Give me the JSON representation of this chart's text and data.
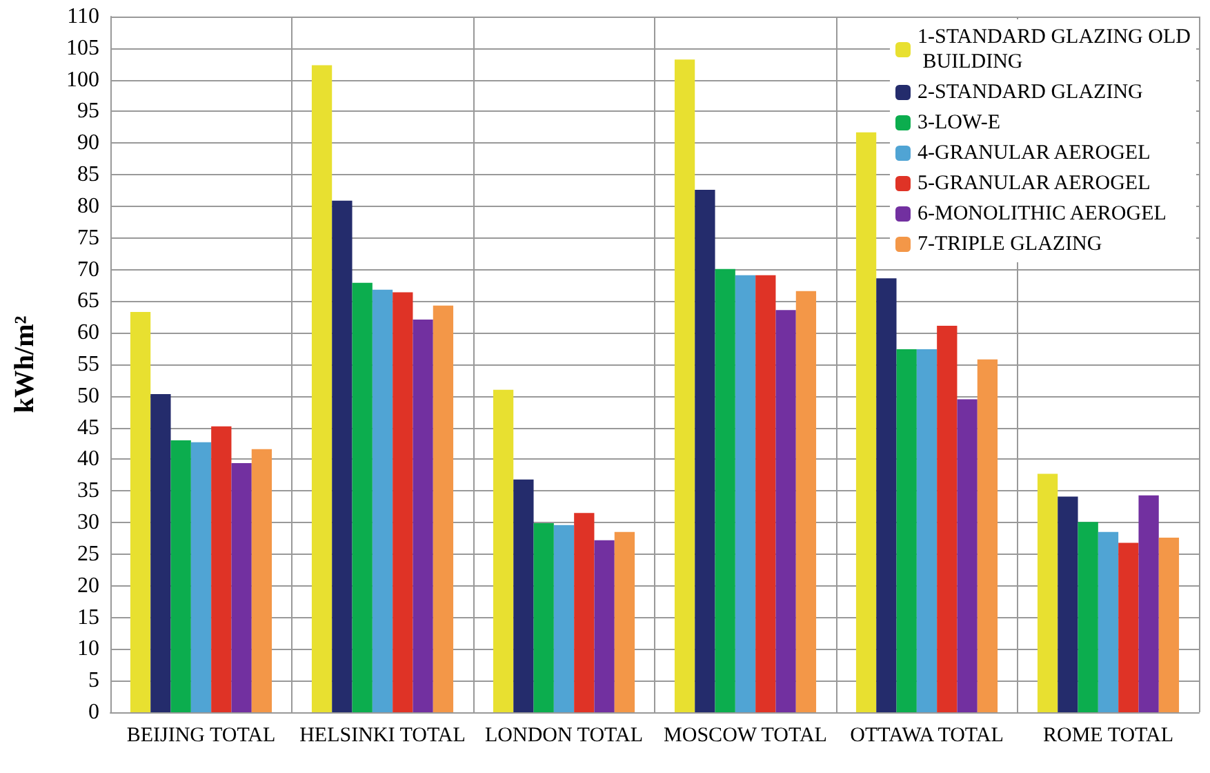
{
  "chart_data": {
    "type": "bar",
    "ylabel": "kWh/m²",
    "categories": [
      "BEIJING TOTAL",
      "HELSINKI TOTAL",
      "LONDON TOTAL",
      "MOSCOW TOTAL",
      "OTTAWA TOTAL",
      "ROME TOTAL"
    ],
    "series": [
      {
        "name": "1-STANDARD GLAZING OLD BUILDING",
        "color": "#e8e030",
        "values": [
          63.3,
          102.3,
          51,
          103.2,
          91.7,
          37.7
        ]
      },
      {
        "name": "2-STANDARD GLAZING",
        "color": "#242c6c",
        "values": [
          50.3,
          80.9,
          36.8,
          82.6,
          68.6,
          34.1
        ]
      },
      {
        "name": "3-LOW-E",
        "color": "#0cad4e",
        "values": [
          43,
          67.9,
          29.9,
          70.1,
          57.4,
          30.1
        ]
      },
      {
        "name": "4-GRANULAR AEROGEL",
        "color": "#50a4d4",
        "values": [
          42.7,
          66.8,
          29.6,
          69.1,
          57.4,
          28.5
        ]
      },
      {
        "name": "5-GRANULAR AEROGEL",
        "color": "#df3326",
        "values": [
          45.2,
          66.4,
          31.5,
          69.1,
          61.1,
          26.8
        ]
      },
      {
        "name": "6-MONOLITHIC AEROGEL",
        "color": "#7230a0",
        "values": [
          39.4,
          62.1,
          27.2,
          63.6,
          49.5,
          34.3
        ]
      },
      {
        "name": "7-TRIPLE GLAZING",
        "color": "#f39748",
        "values": [
          41.6,
          64.3,
          28.5,
          66.6,
          55.8,
          27.6
        ]
      }
    ],
    "ylim": [
      0,
      110
    ],
    "yticks": [
      0,
      5,
      10,
      15,
      20,
      25,
      30,
      35,
      40,
      45,
      50,
      55,
      60,
      65,
      70,
      75,
      80,
      85,
      90,
      95,
      100,
      105,
      110
    ],
    "grid": true,
    "legend": "top right"
  }
}
